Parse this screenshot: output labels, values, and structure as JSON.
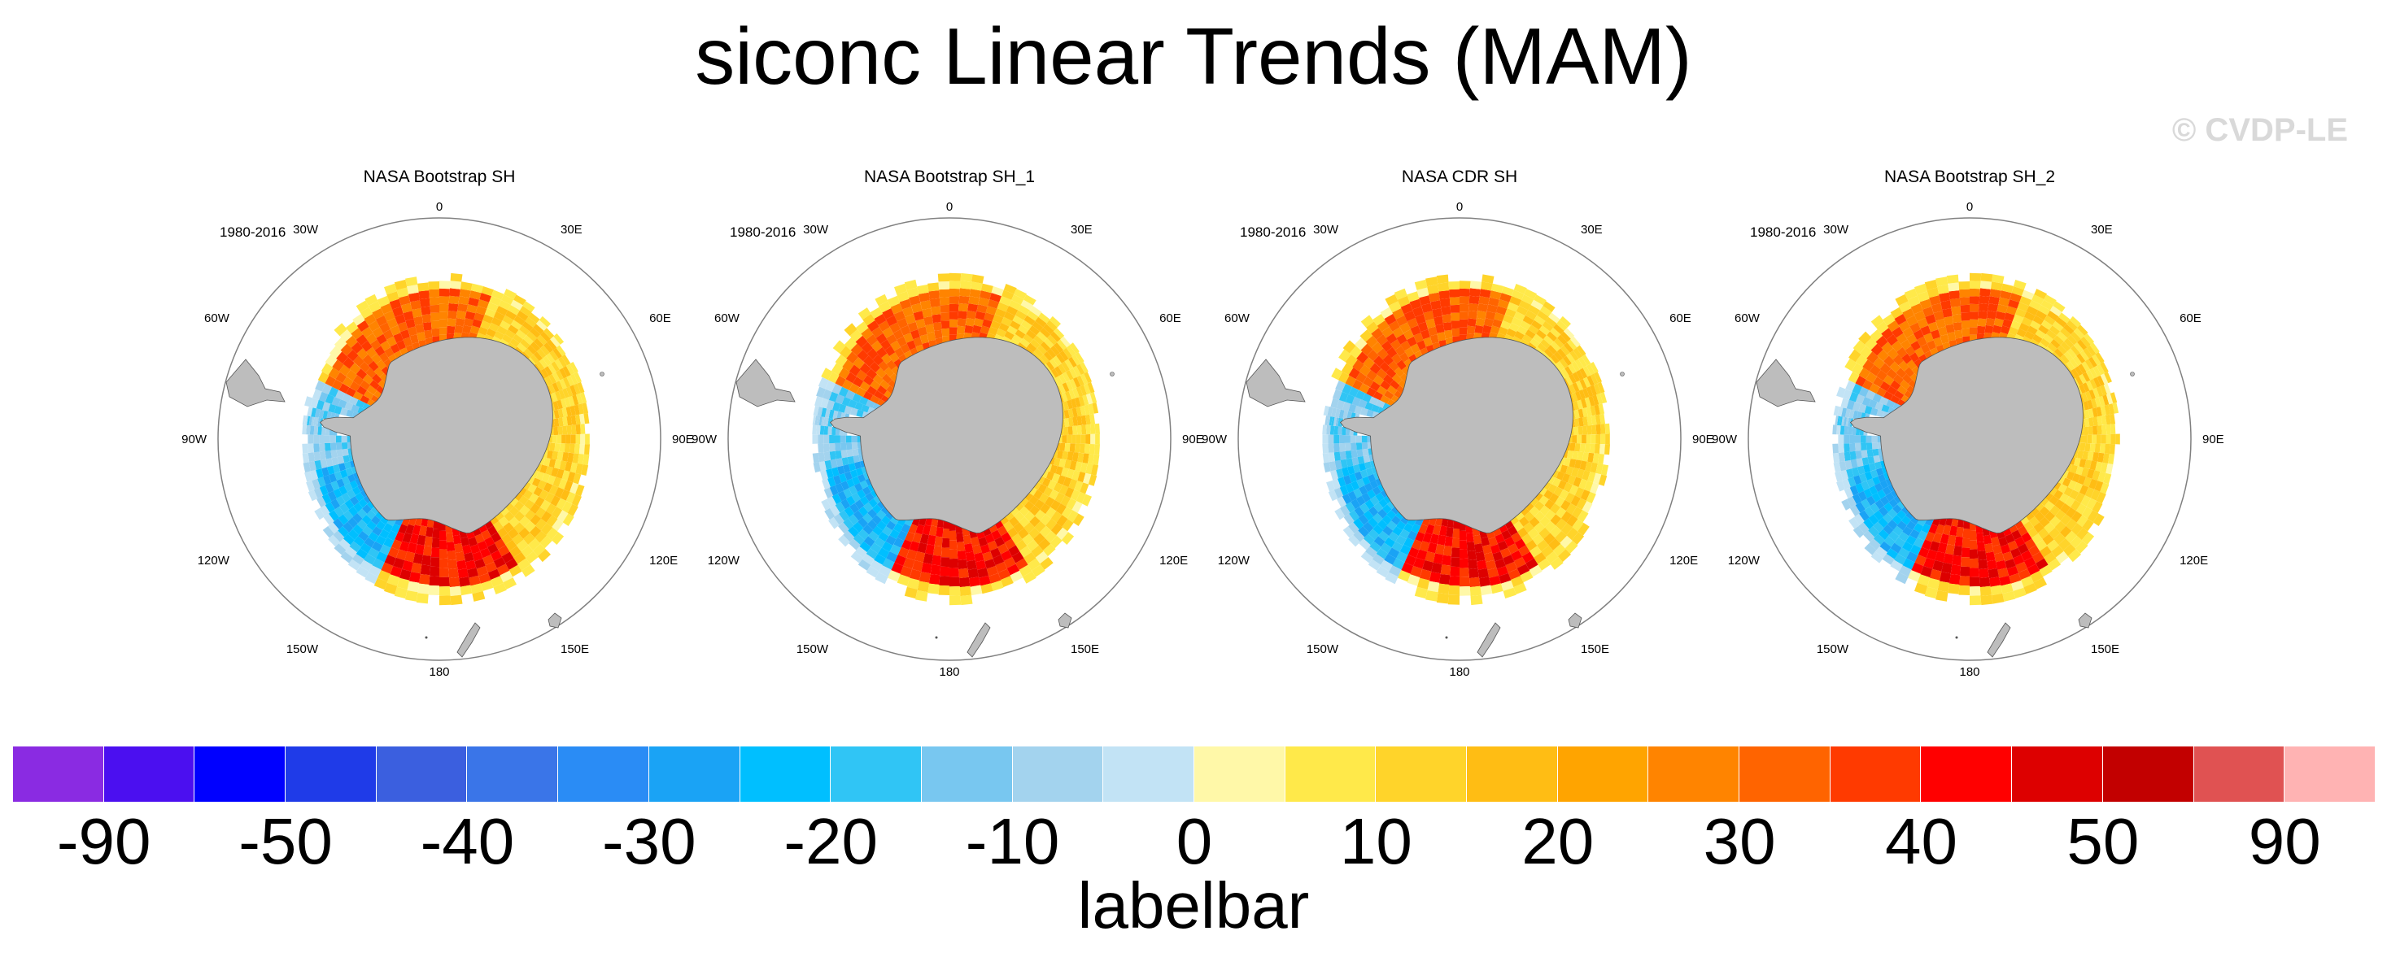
{
  "title": "siconc Linear Trends (MAM)",
  "copyright": "© CVDP-LE",
  "panels": [
    {
      "title": "NASA Bootstrap SH",
      "period": "1980-2016"
    },
    {
      "title": "NASA Bootstrap SH_1",
      "period": "1980-2016"
    },
    {
      "title": "NASA CDR SH",
      "period": "1980-2016"
    },
    {
      "title": "NASA Bootstrap SH_2",
      "period": "1980-2016"
    }
  ],
  "lon_labels": [
    "0",
    "30E",
    "60E",
    "90E",
    "120E",
    "150E",
    "180",
    "150W",
    "120W",
    "90W",
    "60W",
    "30W"
  ],
  "colors": {
    "land": "#bdbdbd",
    "map_border": "#808080",
    "labelbar": [
      "#8a2be2",
      "#4b0ff0",
      "#0000ff",
      "#1f3be8",
      "#3b5fdf",
      "#3a75e8",
      "#2a8cf5",
      "#1aa3f5",
      "#00bfff",
      "#30c5f5",
      "#78c7f0",
      "#a3d3ee",
      "#c2e3f5",
      "#fff8a8",
      "#ffe94a",
      "#ffd42a",
      "#ffbd14",
      "#ffa400",
      "#ff8400",
      "#ff6400",
      "#ff3a00",
      "#ff0000",
      "#dd0000",
      "#c20000",
      "#e05252",
      "#ffb3b3"
    ]
  },
  "labelbar": {
    "title": "labelbar",
    "tick_labels": [
      "-90",
      "-50",
      "-40",
      "-30",
      "-20",
      "-10",
      "0",
      "10",
      "20",
      "30",
      "40",
      "50",
      "90"
    ]
  }
}
